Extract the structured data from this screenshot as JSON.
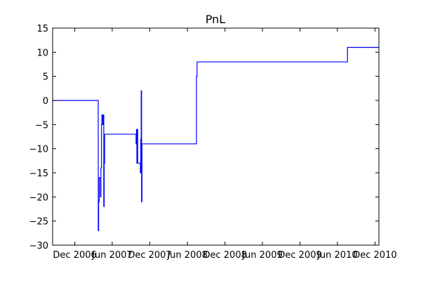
{
  "chart_data": {
    "type": "line",
    "title": "PnL",
    "xlabel": "",
    "ylabel": "",
    "ylim": [
      -30,
      15
    ],
    "xlim": [
      "2006-08-15",
      "2010-12-20"
    ],
    "grid": false,
    "y_ticks": [
      -30,
      -25,
      -20,
      -15,
      -10,
      -5,
      0,
      5,
      10,
      15
    ],
    "x_ticks": [
      {
        "date": "2006-12-01",
        "label": "Dec 2006"
      },
      {
        "date": "2007-06-01",
        "label": "Jun 2007"
      },
      {
        "date": "2007-12-01",
        "label": "Dec 2007"
      },
      {
        "date": "2008-06-01",
        "label": "Jun 2008"
      },
      {
        "date": "2008-12-01",
        "label": "Dec 2008"
      },
      {
        "date": "2009-06-01",
        "label": "Jun 2009"
      },
      {
        "date": "2009-12-01",
        "label": "Dec 2009"
      },
      {
        "date": "2010-06-01",
        "label": "Jun 2010"
      },
      {
        "date": "2010-12-01",
        "label": "Dec 2010"
      }
    ],
    "series": [
      {
        "color": "#0000ff",
        "points": [
          {
            "x": "2006-08-15",
            "y": 0
          },
          {
            "x": "2007-03-25",
            "y": 0
          },
          {
            "x": "2007-03-25",
            "y": -27
          },
          {
            "x": "2007-03-27",
            "y": -27
          },
          {
            "x": "2007-03-27",
            "y": -21
          },
          {
            "x": "2007-03-30",
            "y": -21
          },
          {
            "x": "2007-03-30",
            "y": -16
          },
          {
            "x": "2007-04-05",
            "y": -16
          },
          {
            "x": "2007-04-05",
            "y": -20
          },
          {
            "x": "2007-04-07",
            "y": -20
          },
          {
            "x": "2007-04-07",
            "y": -14
          },
          {
            "x": "2007-04-10",
            "y": -14
          },
          {
            "x": "2007-04-10",
            "y": -5
          },
          {
            "x": "2007-04-12",
            "y": -5
          },
          {
            "x": "2007-04-12",
            "y": -3
          },
          {
            "x": "2007-04-16",
            "y": -3
          },
          {
            "x": "2007-04-16",
            "y": -5
          },
          {
            "x": "2007-04-18",
            "y": -5
          },
          {
            "x": "2007-04-18",
            "y": -3
          },
          {
            "x": "2007-04-21",
            "y": -3
          },
          {
            "x": "2007-04-21",
            "y": -22
          },
          {
            "x": "2007-04-23",
            "y": -22
          },
          {
            "x": "2007-04-23",
            "y": -13
          },
          {
            "x": "2007-04-25",
            "y": -13
          },
          {
            "x": "2007-04-25",
            "y": -7
          },
          {
            "x": "2007-09-25",
            "y": -7
          },
          {
            "x": "2007-09-25",
            "y": -9
          },
          {
            "x": "2007-09-27",
            "y": -9
          },
          {
            "x": "2007-09-27",
            "y": -6
          },
          {
            "x": "2007-09-29",
            "y": -6
          },
          {
            "x": "2007-09-29",
            "y": -13
          },
          {
            "x": "2007-10-01",
            "y": -13
          },
          {
            "x": "2007-10-01",
            "y": -6
          },
          {
            "x": "2007-10-03",
            "y": -6
          },
          {
            "x": "2007-10-03",
            "y": -13
          },
          {
            "x": "2007-10-16",
            "y": -13
          },
          {
            "x": "2007-10-16",
            "y": -15
          },
          {
            "x": "2007-10-18",
            "y": -15
          },
          {
            "x": "2007-10-18",
            "y": -8
          },
          {
            "x": "2007-10-20",
            "y": -8
          },
          {
            "x": "2007-10-20",
            "y": 2
          },
          {
            "x": "2007-10-22",
            "y": 2
          },
          {
            "x": "2007-10-22",
            "y": -21
          },
          {
            "x": "2007-10-24",
            "y": -21
          },
          {
            "x": "2007-10-24",
            "y": -9
          },
          {
            "x": "2008-07-15",
            "y": -9
          },
          {
            "x": "2008-07-15",
            "y": 5
          },
          {
            "x": "2008-07-18",
            "y": 5
          },
          {
            "x": "2008-07-18",
            "y": 8
          },
          {
            "x": "2010-07-20",
            "y": 8
          },
          {
            "x": "2010-07-20",
            "y": 11
          },
          {
            "x": "2010-12-20",
            "y": 11
          }
        ]
      }
    ]
  }
}
